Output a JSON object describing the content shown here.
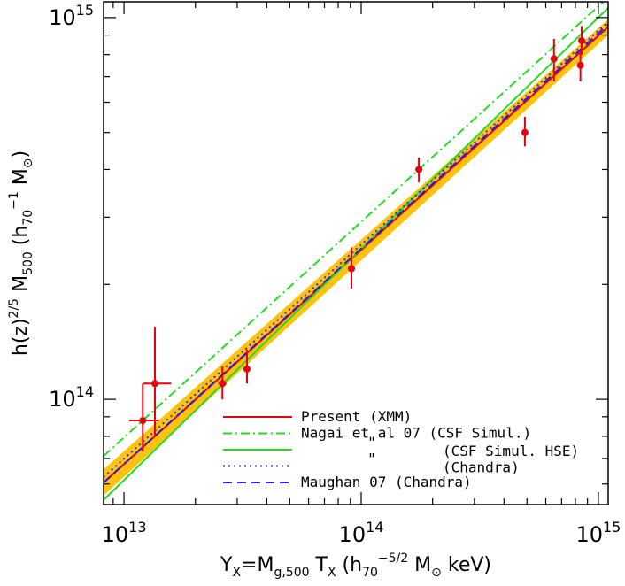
{
  "chart_data": {
    "type": "scatter",
    "title": "",
    "xscale": "log",
    "yscale": "log",
    "xlim": [
      8200000000000.0,
      1100000000000000.0
    ],
    "ylim": [
      53000000000000.0,
      1100000000000000.0
    ],
    "xlabel": "Y_X=M_g,500 T_X (h_70^-5/2 M_⊙ keV)",
    "ylabel": "h(z)^2/5 M_500 (h_70^-1 M_⊙)",
    "xlabel_parts": {
      "a": "Y",
      "a_sub": "X",
      "b": "=M",
      "b_sub": "g,500",
      "c": " T",
      "c_sub": "X",
      "d": " (h",
      "d_sub": "70",
      "d_sup": "−5/2",
      "e": " M",
      "e_sub": "⊙",
      "f": " keV)"
    },
    "ylabel_parts": {
      "a": "h(z)",
      "a_sup": "2/5",
      "b": " M",
      "b_sub": "500",
      "c": " (h",
      "c_sub": "70",
      "c_sup": "−1",
      "d": " M",
      "d_sub": "⊙",
      "e": ")"
    },
    "x_ticks": [
      {
        "value": 10000000000000.0,
        "base": "10",
        "exp": "13"
      },
      {
        "value": 100000000000000.0,
        "base": "10",
        "exp": "14"
      },
      {
        "value": 1000000000000000.0,
        "base": "10",
        "exp": "15"
      }
    ],
    "y_ticks": [
      {
        "value": 100000000000000.0,
        "base": "10",
        "exp": "14"
      },
      {
        "value": 1000000000000000.0,
        "base": "10",
        "exp": "15"
      }
    ],
    "band": {
      "color": "#ffc20e",
      "x_range": [
        8200000000000.0,
        1100000000000000.0
      ],
      "lower": [
        [
          8200000000000.0,
          56000000000000.0
        ],
        [
          1100000000000000.0,
          900000000000000.0
        ]
      ],
      "upper": [
        [
          8200000000000.0,
          65500000000000.0
        ],
        [
          1100000000000000.0,
          990000000000000.0
        ]
      ]
    },
    "series": [
      {
        "name": "Present (XMM)",
        "color": "#e8000d",
        "style": "solid",
        "points": [
          [
            8200000000000.0,
            60500000000000.0
          ],
          [
            1100000000000000.0,
            945000000000000.0
          ]
        ]
      },
      {
        "name": "Nagai et al 07 (CSF Simul.)",
        "color": "#22dd22",
        "style": "dashdot",
        "points": [
          [
            8200000000000.0,
            71000000000000.0
          ],
          [
            1100000000000000.0,
            1130000000000000.0
          ]
        ]
      },
      {
        "name": "(CSF Simul. HSE)",
        "color": "#22dd22",
        "style": "solid",
        "points": [
          [
            8200000000000.0,
            54500000000000.0
          ],
          [
            1100000000000000.0,
            1060000000000000.0
          ]
        ]
      },
      {
        "name": "(Chandra)",
        "color": "#3030c0",
        "style": "dotted",
        "points": [
          [
            8200000000000.0,
            62500000000000.0
          ],
          [
            1100000000000000.0,
            975000000000000.0
          ]
        ]
      },
      {
        "name": "Maughan 07 (Chandra)",
        "color": "#2020dd",
        "style": "dashed",
        "points": [
          [
            8200000000000.0,
            60500000000000.0
          ],
          [
            1100000000000000.0,
            960000000000000.0
          ]
        ]
      }
    ],
    "legend": {
      "placement": "bottom-right",
      "entries": [
        {
          "label": "Present (XMM)",
          "color": "#e8000d",
          "style": "solid"
        },
        {
          "label": "Nagai et al 07 (CSF Simul.)",
          "color": "#22dd22",
          "style": "dashdot"
        },
        {
          "label": "(CSF Simul. HSE)",
          "color": "#22dd22",
          "style": "solid",
          "ditto": "\""
        },
        {
          "label": "(Chandra)",
          "color": "#3030c0",
          "style": "dotted",
          "ditto": "\""
        },
        {
          "label": "Maughan 07 (Chandra)",
          "color": "#2020dd",
          "style": "dashed"
        }
      ]
    },
    "data_points": {
      "color": "#e8000d",
      "points": [
        {
          "x": 12000000000000.0,
          "y": 88000000000000.0,
          "xerr": [
            10500000000000.0,
            14000000000000.0
          ],
          "yerr": [
            73000000000000.0,
            110000000000000.0
          ]
        },
        {
          "x": 13500000000000.0,
          "y": 110000000000000.0,
          "xerr": [
            12000000000000.0,
            15800000000000.0
          ],
          "yerr": [
            80000000000000.0,
            155000000000000.0
          ]
        },
        {
          "x": 26000000000000.0,
          "y": 110000000000000.0,
          "xerr": [
            25000000000000.0,
            27000000000000.0
          ],
          "yerr": [
            100000000000000.0,
            122000000000000.0
          ]
        },
        {
          "x": 33000000000000.0,
          "y": 120000000000000.0,
          "xerr": [
            32000000000000.0,
            34000000000000.0
          ],
          "yerr": [
            110000000000000.0,
            135000000000000.0
          ]
        },
        {
          "x": 91000000000000.0,
          "y": 220000000000000.0,
          "xerr": [
            89000000000000.0,
            93000000000000.0
          ],
          "yerr": [
            195000000000000.0,
            250000000000000.0
          ]
        },
        {
          "x": 175000000000000.0,
          "y": 400000000000000.0,
          "xerr": [
            172000000000000.0,
            178000000000000.0
          ],
          "yerr": [
            370000000000000.0,
            430000000000000.0
          ]
        },
        {
          "x": 490000000000000.0,
          "y": 500000000000000.0,
          "xerr": [
            480000000000000.0,
            500000000000000.0
          ],
          "yerr": [
            460000000000000.0,
            550000000000000.0
          ]
        },
        {
          "x": 650000000000000.0,
          "y": 780000000000000.0,
          "xerr": [
            640000000000000.0,
            660000000000000.0
          ],
          "yerr": [
            680000000000000.0,
            880000000000000.0
          ]
        },
        {
          "x": 840000000000000.0,
          "y": 750000000000000.0,
          "xerr": [
            830000000000000.0,
            850000000000000.0
          ],
          "yerr": [
            680000000000000.0,
            820000000000000.0
          ]
        },
        {
          "x": 850000000000000.0,
          "y": 870000000000000.0,
          "xerr": [
            840000000000000.0,
            860000000000000.0
          ],
          "yerr": [
            800000000000000.0,
            950000000000000.0
          ]
        }
      ]
    }
  }
}
